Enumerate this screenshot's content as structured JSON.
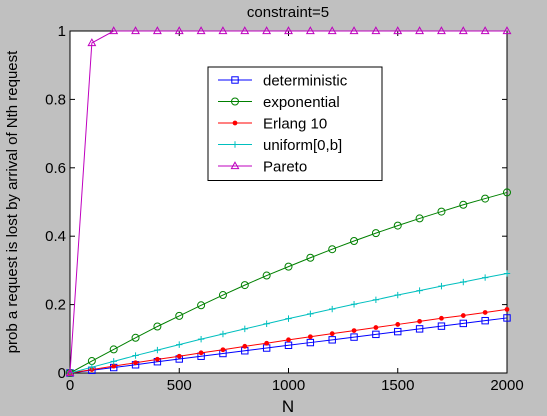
{
  "chart_data": {
    "type": "line",
    "title": "constraint=5",
    "xlabel": "N",
    "ylabel": "prob a request is lost by arrival of Nth request",
    "xlim": [
      0,
      2000
    ],
    "ylim": [
      0,
      1
    ],
    "xticks": [
      0,
      500,
      1000,
      1500,
      2000
    ],
    "xtick_labels": [
      "0",
      "500",
      "1000",
      "1500",
      "2000"
    ],
    "yticks": [
      0,
      0.2,
      0.4,
      0.6,
      0.8,
      1
    ],
    "ytick_labels": [
      "0",
      "0.2",
      "0.4",
      "0.6",
      "0.8",
      "1"
    ],
    "grid": false,
    "legend_position": "upper-center",
    "x": [
      0,
      100,
      200,
      300,
      400,
      500,
      600,
      700,
      800,
      900,
      1000,
      1100,
      1200,
      1300,
      1400,
      1500,
      1600,
      1700,
      1800,
      1900,
      2000
    ],
    "series": [
      {
        "name": "deterministic",
        "color": "#0000ff",
        "marker": "square",
        "values": [
          0,
          0.008,
          0.016,
          0.024,
          0.033,
          0.041,
          0.049,
          0.057,
          0.065,
          0.073,
          0.081,
          0.089,
          0.097,
          0.105,
          0.113,
          0.121,
          0.129,
          0.137,
          0.145,
          0.153,
          0.161
        ]
      },
      {
        "name": "exponential",
        "color": "#008000",
        "marker": "circle",
        "values": [
          0,
          0.035,
          0.069,
          0.103,
          0.136,
          0.167,
          0.198,
          0.228,
          0.257,
          0.285,
          0.311,
          0.337,
          0.362,
          0.386,
          0.409,
          0.431,
          0.452,
          0.472,
          0.492,
          0.51,
          0.528
        ]
      },
      {
        "name": "Erlang 10",
        "color": "#ff0000",
        "marker": "dot",
        "values": [
          0,
          0.01,
          0.02,
          0.03,
          0.04,
          0.049,
          0.059,
          0.068,
          0.078,
          0.087,
          0.097,
          0.106,
          0.115,
          0.124,
          0.133,
          0.142,
          0.151,
          0.16,
          0.168,
          0.177,
          0.186
        ]
      },
      {
        "name": "uniform[0,b]",
        "color": "#00bfbf",
        "marker": "plus",
        "values": [
          0,
          0.017,
          0.034,
          0.051,
          0.067,
          0.083,
          0.099,
          0.114,
          0.129,
          0.144,
          0.159,
          0.173,
          0.187,
          0.201,
          0.214,
          0.228,
          0.241,
          0.254,
          0.266,
          0.279,
          0.291
        ]
      },
      {
        "name": "Pareto",
        "color": "#bf00bf",
        "marker": "triangle",
        "values": [
          0,
          0.965,
          1,
          1,
          1,
          1,
          1,
          1,
          1,
          1,
          1,
          1,
          1,
          1,
          1,
          1,
          1,
          1,
          1,
          1,
          1
        ]
      }
    ]
  }
}
